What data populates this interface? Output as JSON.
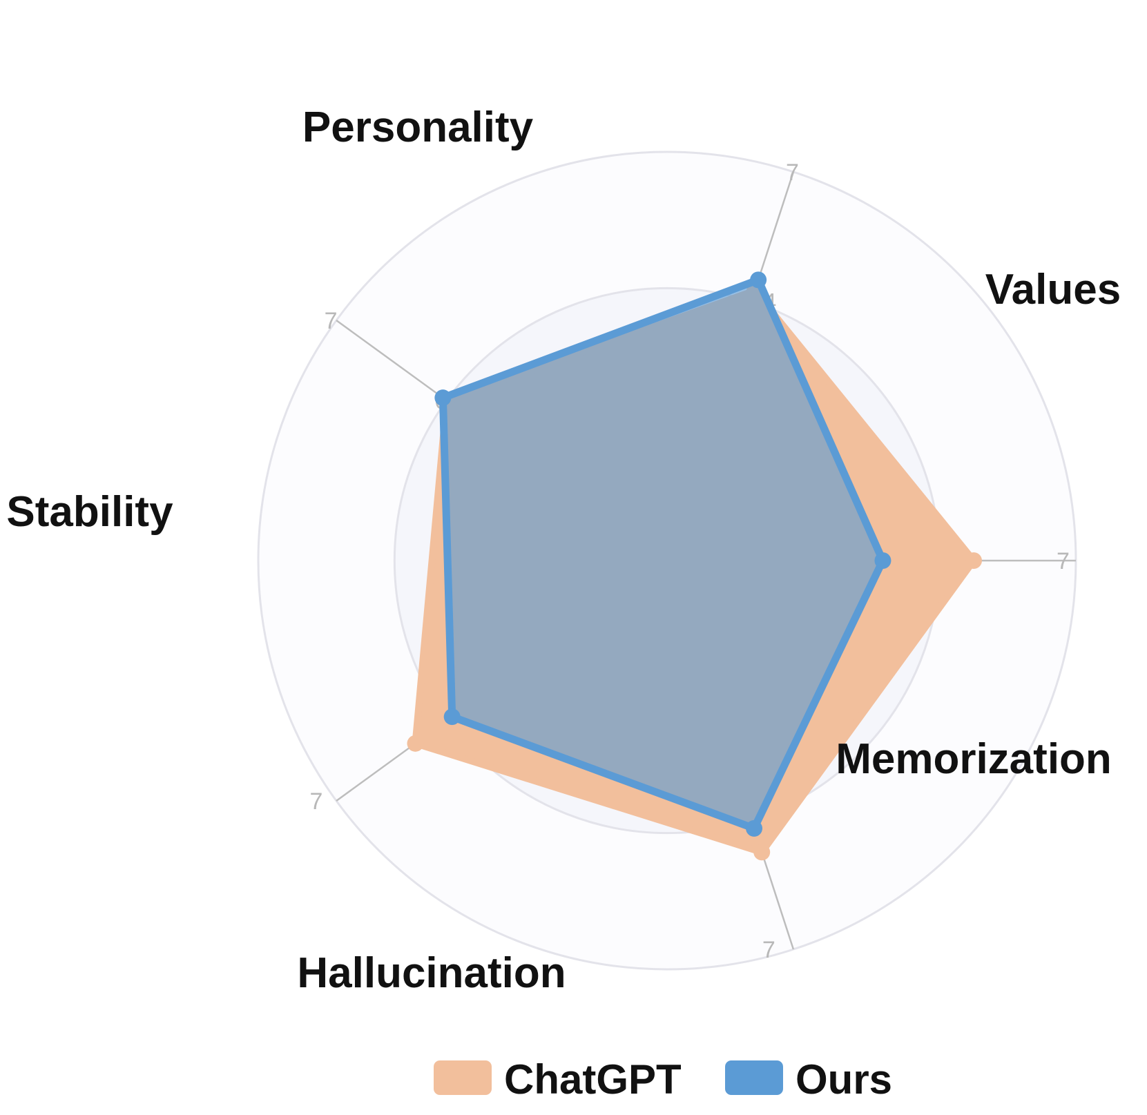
{
  "chart_data": {
    "type": "radar",
    "axes": [
      "Personality",
      "Values",
      "Memorization",
      "Hallucination",
      "Stability"
    ],
    "range": [
      5.2,
      7.0
    ],
    "ticks": [
      {
        "value": 6.4,
        "label": "6.4"
      },
      {
        "value": 7.0,
        "label": "7"
      }
    ],
    "series": [
      {
        "name": "ChatGPT",
        "color": "#f2bf9c",
        "values": [
          6.45,
          6.55,
          6.55,
          6.57,
          6.4
        ]
      },
      {
        "name": "Ours",
        "color": "#5b9bd5",
        "values": [
          6.5,
          6.15,
          6.44,
          6.37,
          6.42
        ]
      }
    ],
    "legend": {
      "position": "bottom"
    },
    "grid": true
  }
}
